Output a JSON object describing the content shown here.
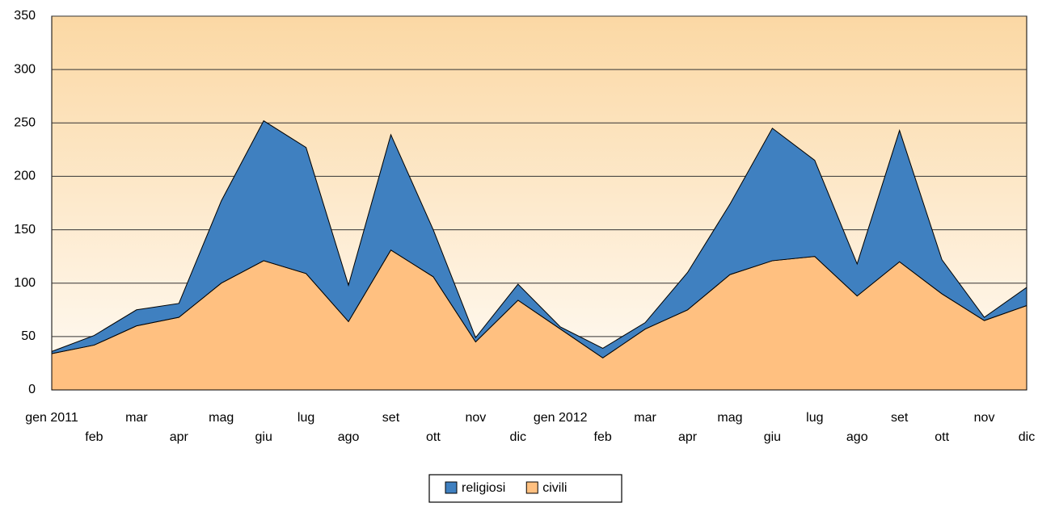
{
  "chart_data": {
    "type": "stacked-area",
    "categories": [
      "gen 2011",
      "feb",
      "mar",
      "apr",
      "mag",
      "giu",
      "lug",
      "ago",
      "set",
      "ott",
      "nov",
      "dic",
      "gen 2012",
      "feb",
      "mar",
      "apr",
      "mag",
      "giu",
      "lug",
      "ago",
      "set",
      "ott",
      "nov",
      "dic"
    ],
    "series": [
      {
        "name": "civili",
        "color": "#ffc080",
        "values": [
          34,
          42,
          60,
          68,
          100,
          121,
          109,
          64,
          131,
          106,
          45,
          84,
          57,
          30,
          57,
          75,
          108,
          121,
          125,
          88,
          120,
          90,
          65,
          79
        ]
      },
      {
        "name": "religiosi",
        "color": "#3f80c0",
        "values": [
          2,
          9,
          15,
          13,
          77,
          131,
          118,
          34,
          108,
          44,
          4,
          15,
          2,
          9,
          6,
          35,
          66,
          124,
          90,
          30,
          123,
          32,
          3,
          17
        ]
      }
    ],
    "ylim": [
      0,
      350
    ],
    "yticks": [
      0,
      50,
      100,
      150,
      200,
      250,
      300,
      350
    ],
    "grid": true
  }
}
